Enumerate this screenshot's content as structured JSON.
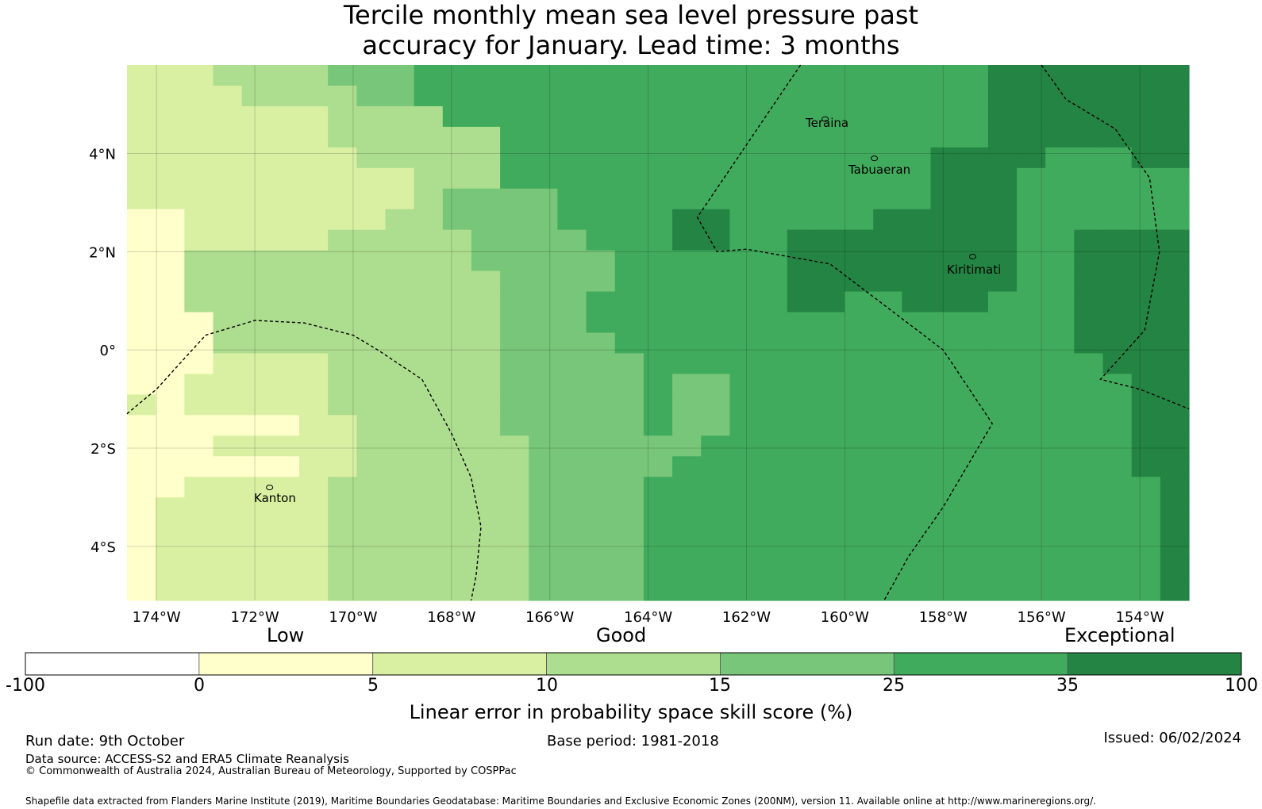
{
  "title": {
    "line1": "Tercile monthly mean sea level pressure past",
    "line2": "accuracy for January. Lead time: 3 months"
  },
  "map": {
    "lon_min": -174.6,
    "lon_max": -153.0,
    "lat_min": -5.1,
    "lat_max": 5.8,
    "cell_lon_deg": 0.833,
    "cell_lat_deg": 0.555,
    "lon_ticks": [
      -174,
      -172,
      -170,
      -168,
      -166,
      -164,
      -162,
      -160,
      -158,
      -156,
      -154
    ],
    "lon_tick_labels": [
      "174°W",
      "172°W",
      "170°W",
      "168°W",
      "166°W",
      "164°W",
      "162°W",
      "160°W",
      "158°W",
      "156°W",
      "154°W"
    ],
    "lat_ticks": [
      4,
      2,
      0,
      -2,
      -4
    ],
    "lat_tick_labels": [
      "4°N",
      "2°N",
      "0°",
      "2°S",
      "4°S"
    ],
    "skill_class_grid": [
      "2223333444555555555555555555555556666",
      "2222333344555555555555555555555556666",
      "2222222333355555555555555555555556666",
      "2222222333355555555555555555555555666",
      "2222222223355555555555555555555555566",
      "2222222222344555555555555555555555556",
      "2222222222344445555555555555555556666",
      "1122222223344445555555555555555556666",
      "1122222333334444555555555555555556666",
      "1133333333334444455555555555555556666",
      "1133333333333444455555555555555556666",
      "1133333333333444555555555555555556666",
      "1113333333333444555555555555555556666",
      "1113333333333444455555555555555556666",
      "1112222333333444445555555555555555666",
      "1122222333333444445555555555555555566",
      "2122222333333444445555555555555555566",
      "1111112233333444445555555555555555566",
      "1112222233333344445555555555555555556",
      "1111112233333344445555555555555555556",
      "1122222333333344445555555555555555556",
      "1222222333333344445555555555555555556",
      "1222222333333344445555555555555555556",
      "1222222333333344445555555555555555556",
      "1222222333333344445555555555555555556",
      "1222222333333344445555555555555555556"
    ],
    "skill_class_patches": [
      {
        "r0": 2,
        "r1": 4,
        "c0": 8,
        "c1": 9,
        "cls": 3
      },
      {
        "r0": 3,
        "r1": 5,
        "c0": 11,
        "c1": 12,
        "cls": 3
      },
      {
        "r0": 0,
        "r1": 3,
        "c0": 30,
        "c1": 36,
        "cls": 6
      },
      {
        "r0": 0,
        "r1": 3,
        "c0": 26,
        "c1": 29,
        "cls": 5
      },
      {
        "r0": 4,
        "r1": 6,
        "c0": 28,
        "c1": 31,
        "cls": 6
      },
      {
        "r0": 5,
        "r1": 7,
        "c0": 31,
        "c1": 36,
        "cls": 5
      },
      {
        "r0": 7,
        "r1": 8,
        "c0": 26,
        "c1": 30,
        "cls": 6
      },
      {
        "r0": 7,
        "r1": 8,
        "c0": 19,
        "c1": 20,
        "cls": 6
      },
      {
        "r0": 8,
        "r1": 10,
        "c0": 23,
        "c1": 30,
        "cls": 6
      },
      {
        "r0": 10,
        "r1": 11,
        "c0": 23,
        "c1": 24,
        "cls": 6
      },
      {
        "r0": 10,
        "r1": 11,
        "c0": 27,
        "c1": 29,
        "cls": 6
      },
      {
        "r0": 11,
        "r1": 12,
        "c0": 33,
        "c1": 36,
        "cls": 6
      },
      {
        "r0": 12,
        "r1": 13,
        "c0": 35,
        "c1": 36,
        "cls": 6
      },
      {
        "r0": 15,
        "r1": 17,
        "c0": 13,
        "c1": 14,
        "cls": 4
      },
      {
        "r0": 15,
        "r1": 16,
        "c0": 15,
        "c1": 16,
        "cls": 4
      },
      {
        "r0": 15,
        "r1": 17,
        "c0": 19,
        "c1": 20,
        "cls": 4
      },
      {
        "r0": 17,
        "r1": 18,
        "c0": 19,
        "c1": 19,
        "cls": 4
      },
      {
        "r0": 18,
        "r1": 19,
        "c0": 18,
        "c1": 18,
        "cls": 4
      },
      {
        "r0": 18,
        "r1": 19,
        "c0": 35,
        "c1": 35,
        "cls": 6
      }
    ],
    "islands": [
      {
        "name": "Teraina",
        "lon": -160.4,
        "lat": 4.7
      },
      {
        "name": "Tabuaeran",
        "lon": -159.4,
        "lat": 3.9
      },
      {
        "name": "Kiritimati",
        "lon": -157.4,
        "lat": 1.9
      },
      {
        "name": "Kanton",
        "lon": -171.7,
        "lat": -2.8
      }
    ],
    "island_labels": {
      "teraina": "Teraina",
      "tabuaeran": "Tabuaeran",
      "kiritimati": "Kiritimati",
      "kanton": "Kanton"
    },
    "eez_boundaries": [
      [
        [
          -174.6,
          -1.3
        ],
        [
          -174.0,
          -0.8
        ],
        [
          -173.0,
          0.3
        ],
        [
          -172.0,
          0.6
        ],
        [
          -171.0,
          0.55
        ],
        [
          -170.0,
          0.3
        ],
        [
          -169.5,
          0.0
        ],
        [
          -168.6,
          -0.6
        ],
        [
          -168.0,
          -1.7
        ],
        [
          -167.6,
          -2.6
        ],
        [
          -167.4,
          -3.6
        ],
        [
          -167.5,
          -4.6
        ],
        [
          -167.6,
          -5.1
        ]
      ],
      [
        [
          -160.9,
          5.8
        ],
        [
          -163.0,
          2.7
        ],
        [
          -162.6,
          2.0
        ],
        [
          -162.0,
          2.05
        ],
        [
          -160.3,
          1.75
        ],
        [
          -158.0,
          0.0
        ],
        [
          -157.0,
          -1.5
        ],
        [
          -158.0,
          -3.2
        ],
        [
          -158.7,
          -4.2
        ],
        [
          -159.2,
          -5.1
        ]
      ],
      [
        [
          -156.0,
          5.8
        ],
        [
          -155.5,
          5.1
        ],
        [
          -154.5,
          4.5
        ],
        [
          -153.8,
          3.5
        ],
        [
          -153.6,
          2.0
        ],
        [
          -153.9,
          0.4
        ],
        [
          -154.8,
          -0.6
        ],
        [
          -154.0,
          -0.8
        ],
        [
          -153.0,
          -1.2
        ]
      ]
    ]
  },
  "colorbar": {
    "categories": [
      "Low",
      "Good",
      "Exceptional"
    ],
    "boundaries": [
      "-100",
      "0",
      "5",
      "10",
      "15",
      "25",
      "35",
      "100"
    ],
    "colors": [
      "#ffffff",
      "#ffffcc",
      "#d9f0a3",
      "#addd8e",
      "#78c679",
      "#41ab5d",
      "#238443"
    ],
    "label": "Linear error in probability space skill score (%)"
  },
  "footer": {
    "run_date": "Run date: 9th October",
    "base_period": "Base period: 1981-2018",
    "issued": "Issued: 06/02/2024",
    "data_source": "Data source: ACCESS-S2 and ERA5 Climate Reanalysis",
    "copyright": "© Commonwealth of Australia 2024, Australian Bureau of Meteorology, Supported by COSPPac",
    "shapefile": "Shapefile data extracted from Flanders Marine Institute (2019), Maritime Boundaries Geodatabase: Maritime Boundaries and Exclusive Economic Zones (200NM), version 11. Available online at http://www.marineregions.org/."
  }
}
